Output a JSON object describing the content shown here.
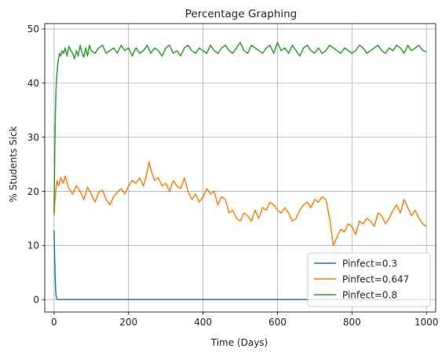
{
  "chart_data": {
    "type": "line",
    "title": "Percentage Graphing",
    "xlabel": "Time (Days)",
    "ylabel": "% Students Sick",
    "xlim": [
      -25,
      1025
    ],
    "ylim": [
      -2.3,
      51
    ],
    "xticks": [
      0,
      200,
      400,
      600,
      800,
      1000
    ],
    "yticks": [
      0,
      10,
      20,
      30,
      40,
      50
    ],
    "grid": true,
    "legend_position": "lower-right",
    "series": [
      {
        "name": "Pinfect=0.3",
        "color": "#1f77b4",
        "x": [
          0,
          1,
          2,
          3,
          4,
          5,
          6,
          7,
          8,
          10,
          15,
          20,
          50,
          100,
          200,
          400,
          600,
          800,
          1000
        ],
        "y": [
          12.8,
          9.5,
          6.5,
          4.0,
          2.2,
          1.0,
          0.4,
          0.15,
          0.05,
          0,
          0,
          0,
          0,
          0,
          0,
          0,
          0,
          0,
          0
        ]
      },
      {
        "name": "Pinfect=0.647",
        "color": "#ff7f0e",
        "x": [
          0,
          2,
          5,
          8,
          12,
          18,
          25,
          30,
          40,
          50,
          60,
          70,
          80,
          90,
          100,
          110,
          120,
          130,
          140,
          150,
          160,
          170,
          180,
          190,
          200,
          210,
          220,
          230,
          240,
          250,
          255,
          260,
          270,
          280,
          290,
          300,
          310,
          320,
          330,
          340,
          350,
          360,
          370,
          380,
          390,
          400,
          410,
          420,
          430,
          440,
          450,
          460,
          470,
          480,
          490,
          500,
          510,
          520,
          530,
          540,
          550,
          560,
          570,
          580,
          590,
          600,
          610,
          620,
          630,
          640,
          650,
          660,
          670,
          680,
          690,
          700,
          710,
          720,
          730,
          740,
          745,
          750,
          760,
          770,
          780,
          790,
          800,
          810,
          820,
          830,
          840,
          850,
          860,
          870,
          880,
          890,
          900,
          910,
          920,
          930,
          940,
          950,
          960,
          970,
          980,
          990,
          1000
        ],
        "y": [
          15.5,
          18.0,
          20.5,
          22.0,
          21.0,
          22.5,
          21.5,
          22.8,
          20.5,
          19.5,
          21.0,
          20.0,
          18.5,
          20.8,
          19.5,
          18.0,
          19.8,
          20.2,
          18.5,
          17.5,
          19.0,
          19.8,
          20.5,
          19.5,
          21.0,
          22.0,
          21.5,
          22.5,
          21.0,
          23.5,
          25.5,
          24.0,
          22.0,
          22.5,
          21.0,
          21.5,
          20.0,
          22.0,
          21.0,
          20.5,
          22.5,
          20.0,
          18.5,
          19.5,
          18.0,
          19.0,
          20.5,
          19.5,
          20.0,
          17.5,
          19.0,
          18.5,
          16.0,
          16.5,
          15.0,
          14.5,
          16.0,
          15.5,
          14.5,
          16.5,
          15.0,
          17.0,
          16.5,
          18.0,
          17.5,
          16.5,
          16.0,
          17.0,
          16.0,
          14.5,
          15.0,
          16.5,
          17.5,
          18.0,
          17.0,
          18.5,
          18.0,
          19.0,
          18.5,
          15.0,
          12.5,
          10.0,
          11.5,
          13.0,
          12.5,
          14.0,
          13.5,
          12.0,
          14.5,
          14.0,
          15.0,
          14.5,
          13.5,
          16.0,
          15.5,
          14.0,
          15.0,
          16.5,
          17.5,
          16.0,
          18.5,
          17.0,
          15.5,
          16.5,
          15.0,
          14.0,
          13.5
        ]
      },
      {
        "name": "Pinfect=0.8",
        "color": "#2ca02c",
        "x": [
          0,
          1,
          2,
          3,
          4,
          5,
          6,
          8,
          10,
          12,
          15,
          18,
          22,
          26,
          30,
          35,
          40,
          45,
          50,
          55,
          60,
          65,
          70,
          75,
          80,
          85,
          90,
          95,
          100,
          110,
          120,
          130,
          140,
          150,
          160,
          170,
          180,
          190,
          200,
          210,
          220,
          230,
          240,
          250,
          260,
          270,
          280,
          290,
          300,
          310,
          320,
          330,
          340,
          350,
          360,
          370,
          380,
          390,
          400,
          410,
          420,
          430,
          440,
          450,
          460,
          470,
          480,
          490,
          500,
          510,
          520,
          530,
          540,
          550,
          560,
          570,
          580,
          590,
          600,
          610,
          620,
          630,
          640,
          650,
          660,
          670,
          680,
          690,
          700,
          710,
          720,
          730,
          740,
          750,
          760,
          770,
          780,
          790,
          800,
          810,
          820,
          830,
          840,
          850,
          860,
          870,
          880,
          890,
          900,
          910,
          920,
          930,
          940,
          950,
          960,
          970,
          980,
          990,
          1000
        ],
        "y": [
          16.0,
          22.0,
          28.0,
          32.0,
          35.5,
          38.0,
          40.0,
          42.0,
          43.5,
          44.5,
          45.5,
          45.0,
          46.0,
          45.5,
          46.5,
          45.0,
          46.8,
          46.0,
          45.5,
          44.5,
          46.0,
          45.0,
          47.0,
          45.5,
          44.8,
          46.5,
          45.0,
          47.0,
          46.0,
          45.5,
          46.5,
          47.0,
          45.5,
          46.0,
          46.5,
          45.5,
          47.0,
          46.0,
          46.5,
          45.0,
          46.5,
          45.5,
          46.0,
          47.0,
          45.5,
          46.5,
          46.0,
          45.0,
          46.5,
          47.0,
          45.5,
          46.0,
          45.0,
          46.5,
          47.0,
          46.0,
          45.5,
          46.5,
          46.0,
          45.5,
          47.0,
          46.0,
          45.5,
          46.5,
          47.0,
          46.0,
          45.5,
          46.5,
          47.5,
          46.0,
          45.5,
          47.0,
          46.5,
          46.0,
          45.5,
          46.5,
          47.0,
          45.5,
          47.5,
          46.0,
          46.5,
          45.5,
          47.0,
          46.0,
          45.0,
          46.5,
          47.0,
          46.0,
          45.5,
          46.5,
          45.5,
          46.0,
          47.0,
          46.5,
          46.0,
          45.5,
          46.5,
          46.0,
          45.5,
          46.0,
          47.0,
          46.5,
          45.5,
          46.0,
          46.5,
          47.0,
          46.0,
          45.5,
          46.5,
          46.0,
          47.0,
          46.5,
          45.5,
          47.0,
          46.0,
          46.5,
          47.0,
          46.0,
          45.8
        ]
      }
    ]
  }
}
